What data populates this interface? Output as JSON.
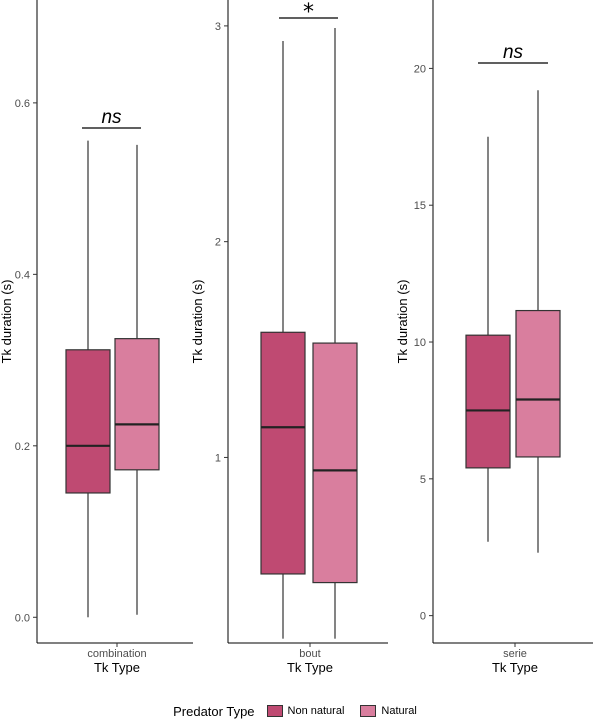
{
  "chart_data": [
    {
      "type": "box",
      "category": "combination",
      "xlabel": "Tk Type",
      "ylabel": "Tk duration (s)",
      "ylim": [
        -0.03,
        0.72
      ],
      "yticks": [
        0.0,
        0.2,
        0.4,
        0.6
      ],
      "ytick_labels": [
        "0.0",
        "0.2",
        "0.4",
        "0.6"
      ],
      "significance": "ns",
      "boxes": [
        {
          "group": "Non natural",
          "min": 0.0,
          "q1": 0.145,
          "median": 0.2,
          "q3": 0.312,
          "max": 0.556
        },
        {
          "group": "Natural",
          "min": 0.003,
          "q1": 0.172,
          "median": 0.225,
          "q3": 0.325,
          "max": 0.551
        }
      ]
    },
    {
      "type": "box",
      "category": "bout",
      "xlabel": "Tk Type",
      "ylabel": "Tk duration (s)",
      "ylim": [
        0.14,
        3.12
      ],
      "yticks": [
        1,
        2,
        3
      ],
      "ytick_labels": [
        "1",
        "2",
        "3"
      ],
      "significance": "*",
      "boxes": [
        {
          "group": "Non natural",
          "min": 0.16,
          "q1": 0.46,
          "median": 1.14,
          "q3": 1.58,
          "max": 2.93
        },
        {
          "group": "Natural",
          "min": 0.16,
          "q1": 0.42,
          "median": 0.94,
          "q3": 1.53,
          "max": 2.99
        }
      ]
    },
    {
      "type": "box",
      "category": "serie",
      "xlabel": "Tk Type",
      "ylabel": "Tk duration (s)",
      "ylim": [
        -1.0,
        22.5
      ],
      "yticks": [
        0,
        5,
        10,
        15,
        20
      ],
      "ytick_labels": [
        "0",
        "5",
        "10",
        "15",
        "20"
      ],
      "significance": "ns",
      "boxes": [
        {
          "group": "Non natural",
          "min": 2.7,
          "q1": 5.4,
          "median": 7.5,
          "q3": 10.25,
          "max": 17.5
        },
        {
          "group": "Natural",
          "min": 2.3,
          "q1": 5.8,
          "median": 7.9,
          "q3": 11.15,
          "max": 19.2
        }
      ]
    }
  ],
  "legend": {
    "title": "Predator Type",
    "items": [
      {
        "label": "Non natural",
        "color": "#bf4a72"
      },
      {
        "label": "Natural",
        "color": "#d97e9e"
      }
    ]
  },
  "colors": {
    "Non natural": "#bf4a72",
    "Natural": "#d97e9e"
  }
}
